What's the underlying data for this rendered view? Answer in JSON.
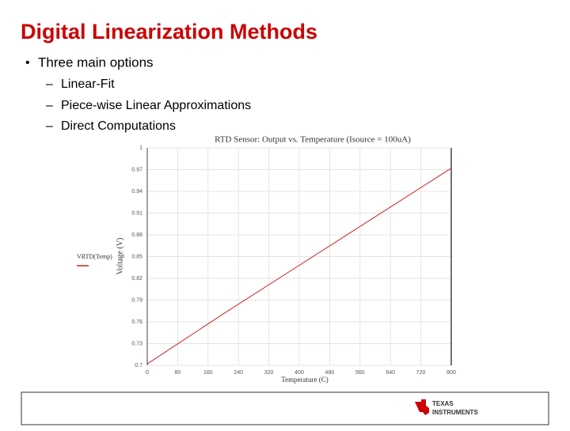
{
  "slide": {
    "title": "Digital Linearization Methods",
    "bullets": [
      {
        "text": "Three main options",
        "sub": [
          "Linear-Fit",
          "Piece-wise Linear Approximations",
          "Direct Computations"
        ]
      }
    ],
    "footer": {
      "logo_line1": "Texas",
      "logo_line2": "Instruments"
    }
  },
  "chart_data": {
    "type": "line",
    "title": "RTD Sensor: Output vs. Temperature (Isource = 100uA)",
    "x_label": "Temperature (C)",
    "y_label": "Voltage (V)",
    "x": [
      0,
      200,
      400,
      600,
      800
    ],
    "series": [
      {
        "name": "VRTD(Temp)",
        "color": "#cc2222",
        "values": [
          0.702,
          0.771,
          0.838,
          0.905,
          0.972
        ]
      }
    ],
    "xlim": [
      0,
      800
    ],
    "xticks": [
      0,
      80,
      160,
      240,
      320,
      400,
      480,
      560,
      640,
      720,
      800
    ],
    "ylim": [
      0.7,
      1.0
    ],
    "yticks": [
      0.7,
      0.73,
      0.76,
      0.79,
      0.82,
      0.85,
      0.88,
      0.91,
      0.94,
      0.97,
      1
    ],
    "grid": true
  }
}
